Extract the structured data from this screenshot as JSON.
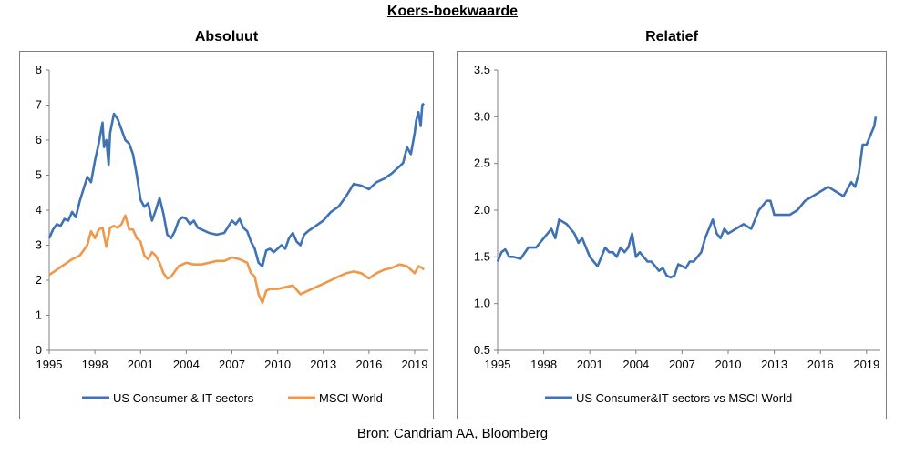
{
  "title": "Koers-boekwaarde",
  "source": "Bron: Candriam AA, Bloomberg",
  "colors": {
    "blue": "#3f72b5",
    "orange": "#f0984a",
    "axis": "#808080"
  },
  "chart_data": [
    {
      "type": "line",
      "title": "Absoluut",
      "xlim": [
        1995,
        2019.9
      ],
      "ylim": [
        0,
        8
      ],
      "x_ticks": [
        1995,
        1998,
        2001,
        2004,
        2007,
        2010,
        2013,
        2016,
        2019
      ],
      "y_ticks": [
        0,
        1,
        2,
        3,
        4,
        5,
        6,
        7,
        8
      ],
      "y_tick_decimals": 0,
      "legend": "bottom",
      "grid": false,
      "series": [
        {
          "name": "US Consumer & IT sectors",
          "color": "#3f72b5",
          "x": [
            1995.0,
            1995.25,
            1995.5,
            1995.75,
            1996.0,
            1996.25,
            1996.5,
            1996.75,
            1997.0,
            1997.25,
            1997.5,
            1997.75,
            1998.0,
            1998.25,
            1998.5,
            1998.6,
            1998.75,
            1998.9,
            1999.0,
            1999.25,
            1999.5,
            1999.75,
            2000.0,
            2000.25,
            2000.5,
            2000.75,
            2001.0,
            2001.25,
            2001.5,
            2001.75,
            2002.0,
            2002.25,
            2002.5,
            2002.75,
            2003.0,
            2003.25,
            2003.5,
            2003.75,
            2004.0,
            2004.25,
            2004.5,
            2004.75,
            2005.0,
            2005.5,
            2006.0,
            2006.5,
            2007.0,
            2007.25,
            2007.5,
            2007.75,
            2008.0,
            2008.25,
            2008.5,
            2008.75,
            2009.0,
            2009.25,
            2009.5,
            2009.75,
            2010.0,
            2010.25,
            2010.5,
            2010.75,
            2011.0,
            2011.25,
            2011.5,
            2011.75,
            2012.0,
            2012.5,
            2013.0,
            2013.5,
            2014.0,
            2014.5,
            2015.0,
            2015.5,
            2016.0,
            2016.5,
            2017.0,
            2017.5,
            2018.0,
            2018.25,
            2018.5,
            2018.75,
            2019.0,
            2019.1,
            2019.25,
            2019.4,
            2019.5,
            2019.6
          ],
          "y": [
            3.2,
            3.45,
            3.6,
            3.55,
            3.75,
            3.7,
            3.95,
            3.8,
            4.25,
            4.6,
            4.95,
            4.8,
            5.4,
            5.9,
            6.5,
            5.8,
            6.0,
            5.3,
            6.2,
            6.75,
            6.6,
            6.3,
            6.0,
            5.9,
            5.6,
            5.0,
            4.3,
            4.1,
            4.2,
            3.7,
            4.0,
            4.35,
            3.9,
            3.3,
            3.2,
            3.4,
            3.7,
            3.8,
            3.75,
            3.6,
            3.7,
            3.5,
            3.45,
            3.35,
            3.3,
            3.35,
            3.7,
            3.6,
            3.75,
            3.5,
            3.4,
            3.1,
            2.9,
            2.5,
            2.4,
            2.85,
            2.9,
            2.8,
            2.9,
            3.0,
            2.9,
            3.2,
            3.35,
            3.1,
            3.0,
            3.3,
            3.4,
            3.55,
            3.7,
            3.95,
            4.1,
            4.4,
            4.75,
            4.7,
            4.6,
            4.8,
            4.9,
            5.05,
            5.25,
            5.35,
            5.8,
            5.6,
            6.2,
            6.55,
            6.8,
            6.4,
            7.0,
            7.05
          ]
        },
        {
          "name": "MSCI World",
          "color": "#f0984a",
          "x": [
            1995.0,
            1995.5,
            1996.0,
            1996.5,
            1997.0,
            1997.5,
            1997.75,
            1998.0,
            1998.25,
            1998.5,
            1998.75,
            1999.0,
            1999.25,
            1999.5,
            1999.75,
            2000.0,
            2000.25,
            2000.5,
            2000.75,
            2001.0,
            2001.25,
            2001.5,
            2001.75,
            2002.0,
            2002.25,
            2002.5,
            2002.75,
            2003.0,
            2003.5,
            2004.0,
            2004.5,
            2005.0,
            2005.5,
            2006.0,
            2006.5,
            2007.0,
            2007.5,
            2008.0,
            2008.25,
            2008.5,
            2008.75,
            2009.0,
            2009.25,
            2009.5,
            2010.0,
            2010.5,
            2011.0,
            2011.5,
            2012.0,
            2012.5,
            2013.0,
            2013.5,
            2014.0,
            2014.5,
            2015.0,
            2015.5,
            2016.0,
            2016.5,
            2017.0,
            2017.5,
            2018.0,
            2018.5,
            2019.0,
            2019.25,
            2019.5,
            2019.6
          ],
          "y": [
            2.15,
            2.3,
            2.45,
            2.6,
            2.7,
            3.0,
            3.4,
            3.2,
            3.45,
            3.5,
            2.95,
            3.5,
            3.55,
            3.5,
            3.6,
            3.85,
            3.45,
            3.45,
            3.2,
            3.1,
            2.7,
            2.6,
            2.8,
            2.7,
            2.5,
            2.2,
            2.05,
            2.1,
            2.4,
            2.5,
            2.45,
            2.45,
            2.5,
            2.55,
            2.55,
            2.65,
            2.6,
            2.5,
            2.2,
            2.1,
            1.6,
            1.35,
            1.7,
            1.75,
            1.75,
            1.8,
            1.85,
            1.6,
            1.7,
            1.8,
            1.9,
            2.0,
            2.1,
            2.2,
            2.25,
            2.2,
            2.05,
            2.2,
            2.3,
            2.35,
            2.45,
            2.4,
            2.2,
            2.4,
            2.35,
            2.3
          ]
        }
      ]
    },
    {
      "type": "line",
      "title": "Relatief",
      "xlim": [
        1995,
        2019.9
      ],
      "ylim": [
        0.5,
        3.5
      ],
      "x_ticks": [
        1995,
        1998,
        2001,
        2004,
        2007,
        2010,
        2013,
        2016,
        2019
      ],
      "y_ticks": [
        0.5,
        1.0,
        1.5,
        2.0,
        2.5,
        3.0,
        3.5
      ],
      "y_tick_decimals": 1,
      "legend": "bottom",
      "grid": false,
      "series": [
        {
          "name": "US Consumer&IT sectors vs MSCI World",
          "color": "#3f72b5",
          "x": [
            1995.0,
            1995.25,
            1995.5,
            1995.75,
            1996.0,
            1996.5,
            1997.0,
            1997.5,
            1998.0,
            1998.25,
            1998.5,
            1998.75,
            1999.0,
            1999.5,
            2000.0,
            2000.25,
            2000.5,
            2000.75,
            2001.0,
            2001.25,
            2001.5,
            2001.75,
            2002.0,
            2002.25,
            2002.5,
            2002.75,
            2003.0,
            2003.25,
            2003.5,
            2003.75,
            2004.0,
            2004.25,
            2004.5,
            2004.75,
            2005.0,
            2005.25,
            2005.5,
            2005.75,
            2006.0,
            2006.25,
            2006.5,
            2006.75,
            2007.0,
            2007.25,
            2007.5,
            2007.75,
            2008.0,
            2008.25,
            2008.5,
            2008.75,
            2009.0,
            2009.25,
            2009.5,
            2009.75,
            2010.0,
            2010.5,
            2011.0,
            2011.5,
            2012.0,
            2012.25,
            2012.5,
            2012.75,
            2013.0,
            2013.5,
            2014.0,
            2014.5,
            2015.0,
            2015.5,
            2016.0,
            2016.5,
            2017.0,
            2017.5,
            2018.0,
            2018.25,
            2018.5,
            2018.75,
            2019.0,
            2019.25,
            2019.5,
            2019.6
          ],
          "y": [
            1.45,
            1.55,
            1.58,
            1.5,
            1.5,
            1.48,
            1.6,
            1.6,
            1.7,
            1.75,
            1.8,
            1.7,
            1.9,
            1.85,
            1.75,
            1.65,
            1.7,
            1.6,
            1.5,
            1.45,
            1.4,
            1.5,
            1.6,
            1.55,
            1.55,
            1.5,
            1.6,
            1.55,
            1.6,
            1.75,
            1.5,
            1.55,
            1.5,
            1.45,
            1.45,
            1.4,
            1.35,
            1.38,
            1.3,
            1.28,
            1.3,
            1.42,
            1.4,
            1.38,
            1.45,
            1.45,
            1.5,
            1.55,
            1.7,
            1.8,
            1.9,
            1.75,
            1.7,
            1.8,
            1.75,
            1.8,
            1.85,
            1.8,
            2.0,
            2.05,
            2.1,
            2.1,
            1.95,
            1.95,
            1.95,
            2.0,
            2.1,
            2.15,
            2.2,
            2.25,
            2.2,
            2.15,
            2.3,
            2.25,
            2.4,
            2.7,
            2.7,
            2.8,
            2.9,
            3.0
          ]
        }
      ]
    }
  ]
}
